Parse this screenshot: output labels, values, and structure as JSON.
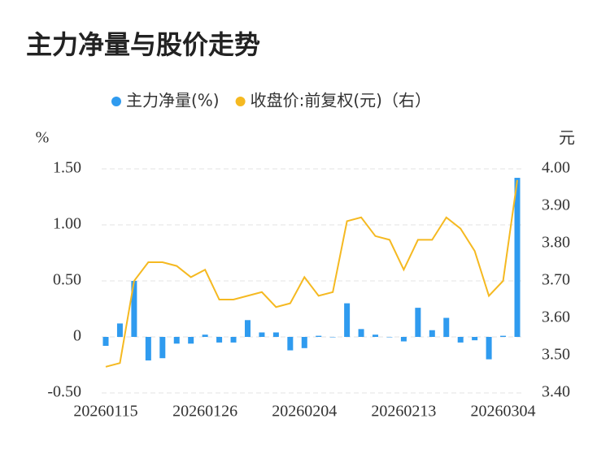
{
  "chart_data": {
    "type": "bar_line",
    "title": "主力净量与股价走势",
    "y_label": "%",
    "y2_label": "元",
    "categories": [
      "20260115",
      null,
      null,
      null,
      null,
      null,
      null,
      "20260126",
      null,
      null,
      null,
      null,
      null,
      null,
      "20260204",
      null,
      null,
      null,
      null,
      null,
      null,
      "20260213",
      null,
      null,
      null,
      null,
      null,
      null,
      "20260304",
      null
    ],
    "series": [
      {
        "name": "主力净量(%)",
        "type": "bar",
        "color": "#2f9bef",
        "axis": "y",
        "values": [
          -0.08,
          0.12,
          0.5,
          -0.21,
          -0.19,
          -0.06,
          -0.06,
          0.02,
          -0.05,
          -0.05,
          0.15,
          0.04,
          0.04,
          -0.12,
          -0.1,
          0.01,
          0.0,
          0.3,
          0.07,
          0.02,
          0.0,
          -0.04,
          0.26,
          0.06,
          0.17,
          -0.05,
          -0.03,
          -0.2,
          0.01,
          1.42
        ]
      },
      {
        "name": "收盘价:前复权(元)（右）",
        "type": "line",
        "color": "#f5b921",
        "axis": "y2",
        "values": [
          3.47,
          3.48,
          3.7,
          3.75,
          3.75,
          3.74,
          3.71,
          3.73,
          3.65,
          3.65,
          3.66,
          3.67,
          3.63,
          3.64,
          3.71,
          3.66,
          3.67,
          3.86,
          3.87,
          3.82,
          3.81,
          3.73,
          3.81,
          3.81,
          3.87,
          3.84,
          3.78,
          3.66,
          3.7,
          3.97
        ]
      }
    ],
    "ylim": [
      -0.5,
      1.5
    ],
    "yticks": [
      {
        "value": -0.5,
        "label": "-0.50"
      },
      0,
      {
        "value": 0.5,
        "label": "0.50"
      },
      {
        "value": 1,
        "label": "1.00"
      },
      {
        "value": 1.5,
        "label": "1.50"
      }
    ],
    "y2lim": [
      3.4,
      4.0
    ],
    "y2ticks": [
      {
        "value": 3.4,
        "label": "3.40"
      },
      {
        "value": 3.5,
        "label": "3.50"
      },
      {
        "value": 3.6,
        "label": "3.60"
      },
      {
        "value": 3.7,
        "label": "3.70"
      },
      {
        "value": 3.8,
        "label": "3.80"
      },
      {
        "value": 3.9,
        "label": "3.90"
      },
      {
        "value": 4.0,
        "label": "4.00"
      }
    ],
    "grid": true
  }
}
